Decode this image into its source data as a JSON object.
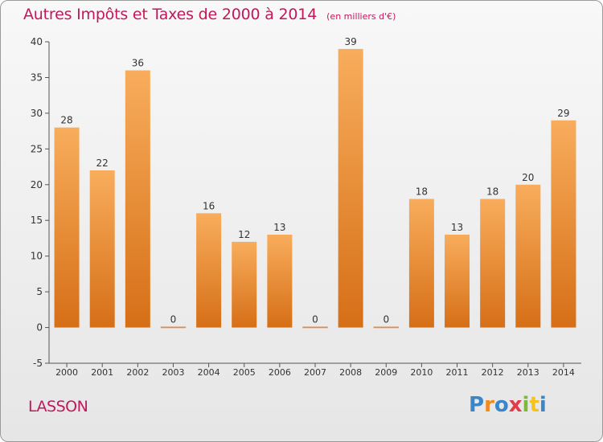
{
  "header": {
    "title": "Autres Impôts et Taxes de 2000 à 2014",
    "unit_note": "(en milliers d'€)"
  },
  "footer": {
    "town": "LASSON",
    "logo_text": "Proxiti"
  },
  "colors": {
    "title": "#c2185b",
    "bar_light": "#f7a955",
    "bar_dark": "#d9731a",
    "axis": "#555555",
    "grid": "#d8d8d8"
  },
  "chart_data": {
    "type": "bar",
    "title": "Autres Impôts et Taxes de 2000 à 2014",
    "subtitle": "(en milliers d'€)",
    "xlabel": "",
    "ylabel": "",
    "categories": [
      "2000",
      "2001",
      "2002",
      "2003",
      "2004",
      "2005",
      "2006",
      "2007",
      "2008",
      "2009",
      "2010",
      "2011",
      "2012",
      "2013",
      "2014"
    ],
    "values": [
      28,
      22,
      36,
      0,
      16,
      12,
      13,
      0,
      39,
      0,
      18,
      13,
      18,
      20,
      29
    ],
    "ylim": [
      -5,
      40
    ],
    "yticks": [
      -5,
      0,
      5,
      10,
      15,
      20,
      25,
      30,
      35,
      40
    ],
    "grid": false,
    "legend": "none"
  }
}
